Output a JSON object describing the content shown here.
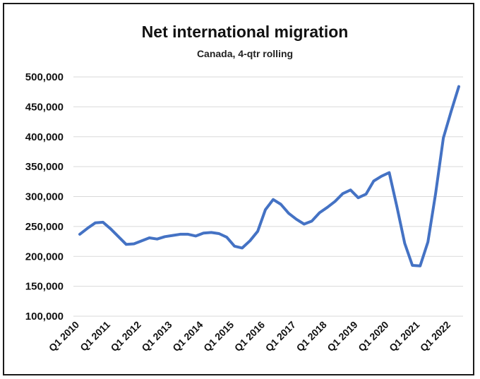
{
  "chart_data": {
    "type": "line",
    "title": "Net international migration",
    "subtitle": "Canada, 4-qtr rolling",
    "xlabel": "",
    "ylabel": "",
    "ylim": [
      100000,
      500000
    ],
    "yticks": [
      "100,000",
      "150,000",
      "200,000",
      "250,000",
      "300,000",
      "350,000",
      "400,000",
      "450,000",
      "500,000"
    ],
    "xticks": [
      "Q1 2010",
      "Q1 2011",
      "Q1 2012",
      "Q1 2013",
      "Q1 2014",
      "Q1 2015",
      "Q1 2016",
      "Q1 2017",
      "Q1 2018",
      "Q1 2019",
      "Q1 2020",
      "Q1 2021",
      "Q1 2022"
    ],
    "grid": true,
    "legend": "none",
    "x": [
      "Q1 2010",
      "Q2 2010",
      "Q3 2010",
      "Q4 2010",
      "Q1 2011",
      "Q2 2011",
      "Q3 2011",
      "Q4 2011",
      "Q1 2012",
      "Q2 2012",
      "Q3 2012",
      "Q4 2012",
      "Q1 2013",
      "Q2 2013",
      "Q3 2013",
      "Q4 2013",
      "Q1 2014",
      "Q2 2014",
      "Q3 2014",
      "Q4 2014",
      "Q1 2015",
      "Q2 2015",
      "Q3 2015",
      "Q4 2015",
      "Q1 2016",
      "Q2 2016",
      "Q3 2016",
      "Q4 2016",
      "Q1 2017",
      "Q2 2017",
      "Q3 2017",
      "Q4 2017",
      "Q1 2018",
      "Q2 2018",
      "Q3 2018",
      "Q4 2018",
      "Q1 2019",
      "Q2 2019",
      "Q3 2019",
      "Q4 2019",
      "Q1 2020",
      "Q2 2020",
      "Q3 2020",
      "Q4 2020",
      "Q1 2021",
      "Q2 2021",
      "Q3 2021",
      "Q4 2021",
      "Q1 2022",
      "Q2 2022"
    ],
    "series": [
      {
        "color": "#4472c4",
        "values": [
          237000,
          247000,
          256000,
          257000,
          246000,
          233000,
          220000,
          221000,
          226000,
          231000,
          229000,
          233000,
          235000,
          237000,
          237000,
          234000,
          239000,
          240000,
          238000,
          232000,
          217000,
          214000,
          226000,
          242000,
          278000,
          295000,
          287000,
          272000,
          262000,
          254000,
          259000,
          273000,
          282000,
          292000,
          305000,
          311000,
          298000,
          304000,
          326000,
          334000,
          340000,
          283000,
          222000,
          185000,
          184000,
          224000,
          305000,
          398000,
          442000,
          484000
        ]
      }
    ]
  }
}
